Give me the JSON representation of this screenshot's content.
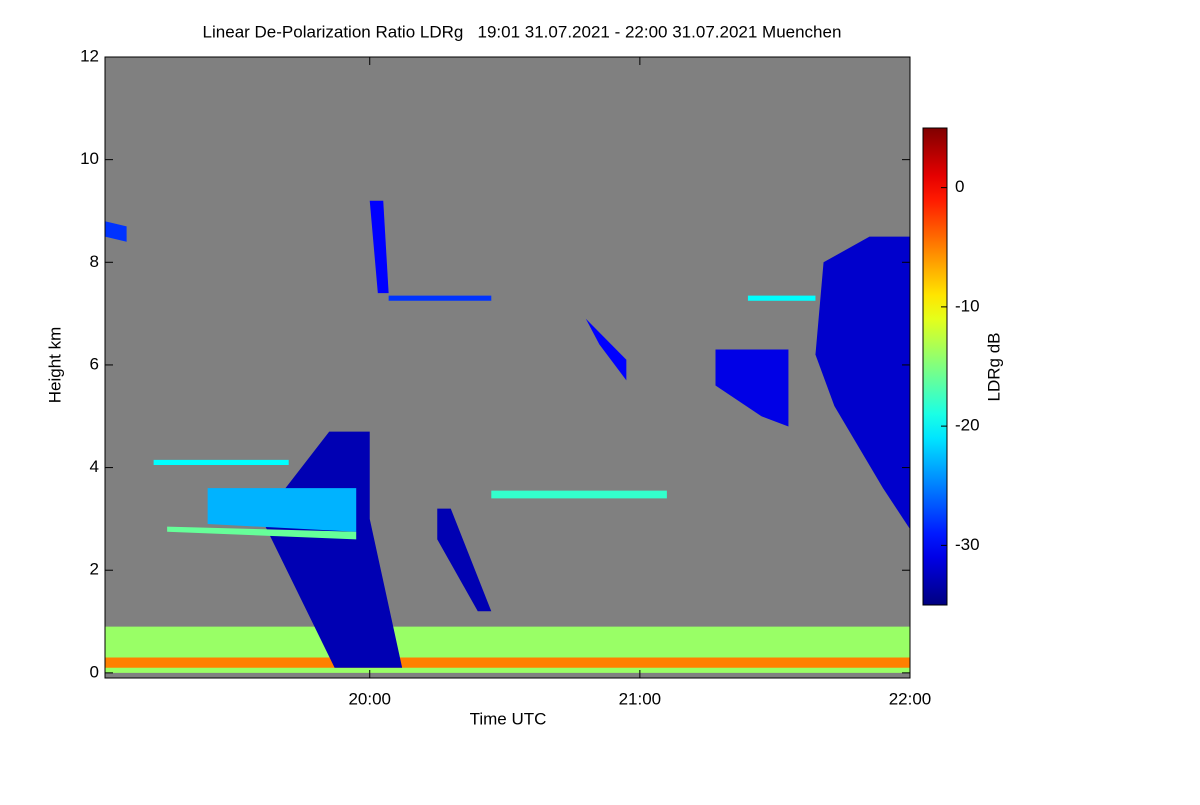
{
  "chart_data": {
    "type": "heatmap",
    "title": "Linear De-Polarization Ratio LDRg   19:01 31.07.2021 - 22:00 31.07.2021 Muenchen",
    "x_label": "Time UTC",
    "y_label": "Height km",
    "colorbar_label": "LDRg dB",
    "colormap": "jet",
    "background": "#808080",
    "xlim": [
      19.02,
      22.0
    ],
    "xticks": [
      {
        "value": 20,
        "label": "20:00"
      },
      {
        "value": 21,
        "label": "21:00"
      },
      {
        "value": 22,
        "label": "22:00"
      }
    ],
    "ylim": [
      -0.1,
      12
    ],
    "yticks": [
      0,
      2,
      4,
      6,
      8,
      10,
      12
    ],
    "clim": [
      -35,
      5
    ],
    "cticks": [
      0,
      -10,
      -20,
      -30
    ],
    "regions": [
      {
        "time": [
          19.02,
          22.0,
          22.0,
          19.02
        ],
        "height": [
          0.9,
          0.9,
          0.0,
          0.0
        ],
        "value": -14
      },
      {
        "time": [
          19.02,
          22.0,
          22.0,
          19.02
        ],
        "height": [
          0.3,
          0.3,
          0.1,
          0.1
        ],
        "value": -5
      },
      {
        "time": [
          19.85,
          20.0,
          20.0,
          20.12,
          19.87,
          19.6
        ],
        "height": [
          4.7,
          4.7,
          3.0,
          0.1,
          0.1,
          3.0
        ],
        "value": -33
      },
      {
        "time": [
          19.4,
          19.95,
          19.95,
          19.4
        ],
        "height": [
          3.6,
          3.6,
          2.75,
          2.9
        ],
        "value": -23
      },
      {
        "time": [
          19.25,
          19.95,
          19.95,
          19.25
        ],
        "height": [
          2.85,
          2.75,
          2.6,
          2.75
        ],
        "value": -16
      },
      {
        "time": [
          21.68,
          21.85,
          22.0,
          22.0,
          21.9,
          21.72,
          21.65
        ],
        "height": [
          8.0,
          8.5,
          8.5,
          2.8,
          3.6,
          5.2,
          6.2
        ],
        "value": -32
      },
      {
        "time": [
          21.28,
          21.55,
          21.55,
          21.45,
          21.28
        ],
        "height": [
          6.3,
          6.3,
          4.8,
          5.0,
          5.6
        ],
        "value": -31
      },
      {
        "time": [
          20.8,
          20.95,
          20.95,
          20.85
        ],
        "height": [
          6.9,
          6.1,
          5.7,
          6.4
        ],
        "value": -30
      },
      {
        "time": [
          20.07,
          20.45,
          20.45,
          20.07
        ],
        "height": [
          7.35,
          7.35,
          7.25,
          7.25
        ],
        "value": -28
      },
      {
        "time": [
          21.4,
          21.65,
          21.65,
          21.4
        ],
        "height": [
          7.35,
          7.35,
          7.25,
          7.25
        ],
        "value": -20
      },
      {
        "time": [
          19.02,
          19.1,
          19.1,
          19.02
        ],
        "height": [
          8.8,
          8.7,
          8.4,
          8.5
        ],
        "value": -28
      },
      {
        "time": [
          20.25,
          20.3,
          20.45,
          20.4,
          20.25
        ],
        "height": [
          3.2,
          3.2,
          1.2,
          1.2,
          2.6
        ],
        "value": -33
      },
      {
        "time": [
          20.0,
          20.05,
          20.07,
          20.03
        ],
        "height": [
          9.2,
          9.2,
          7.4,
          7.4
        ],
        "value": -30
      },
      {
        "time": [
          20.45,
          21.1,
          21.1,
          20.45
        ],
        "height": [
          3.55,
          3.55,
          3.4,
          3.4
        ],
        "value": -18
      },
      {
        "time": [
          19.2,
          19.7,
          19.7,
          19.2
        ],
        "height": [
          4.15,
          4.15,
          4.05,
          4.05
        ],
        "value": -20
      }
    ]
  }
}
